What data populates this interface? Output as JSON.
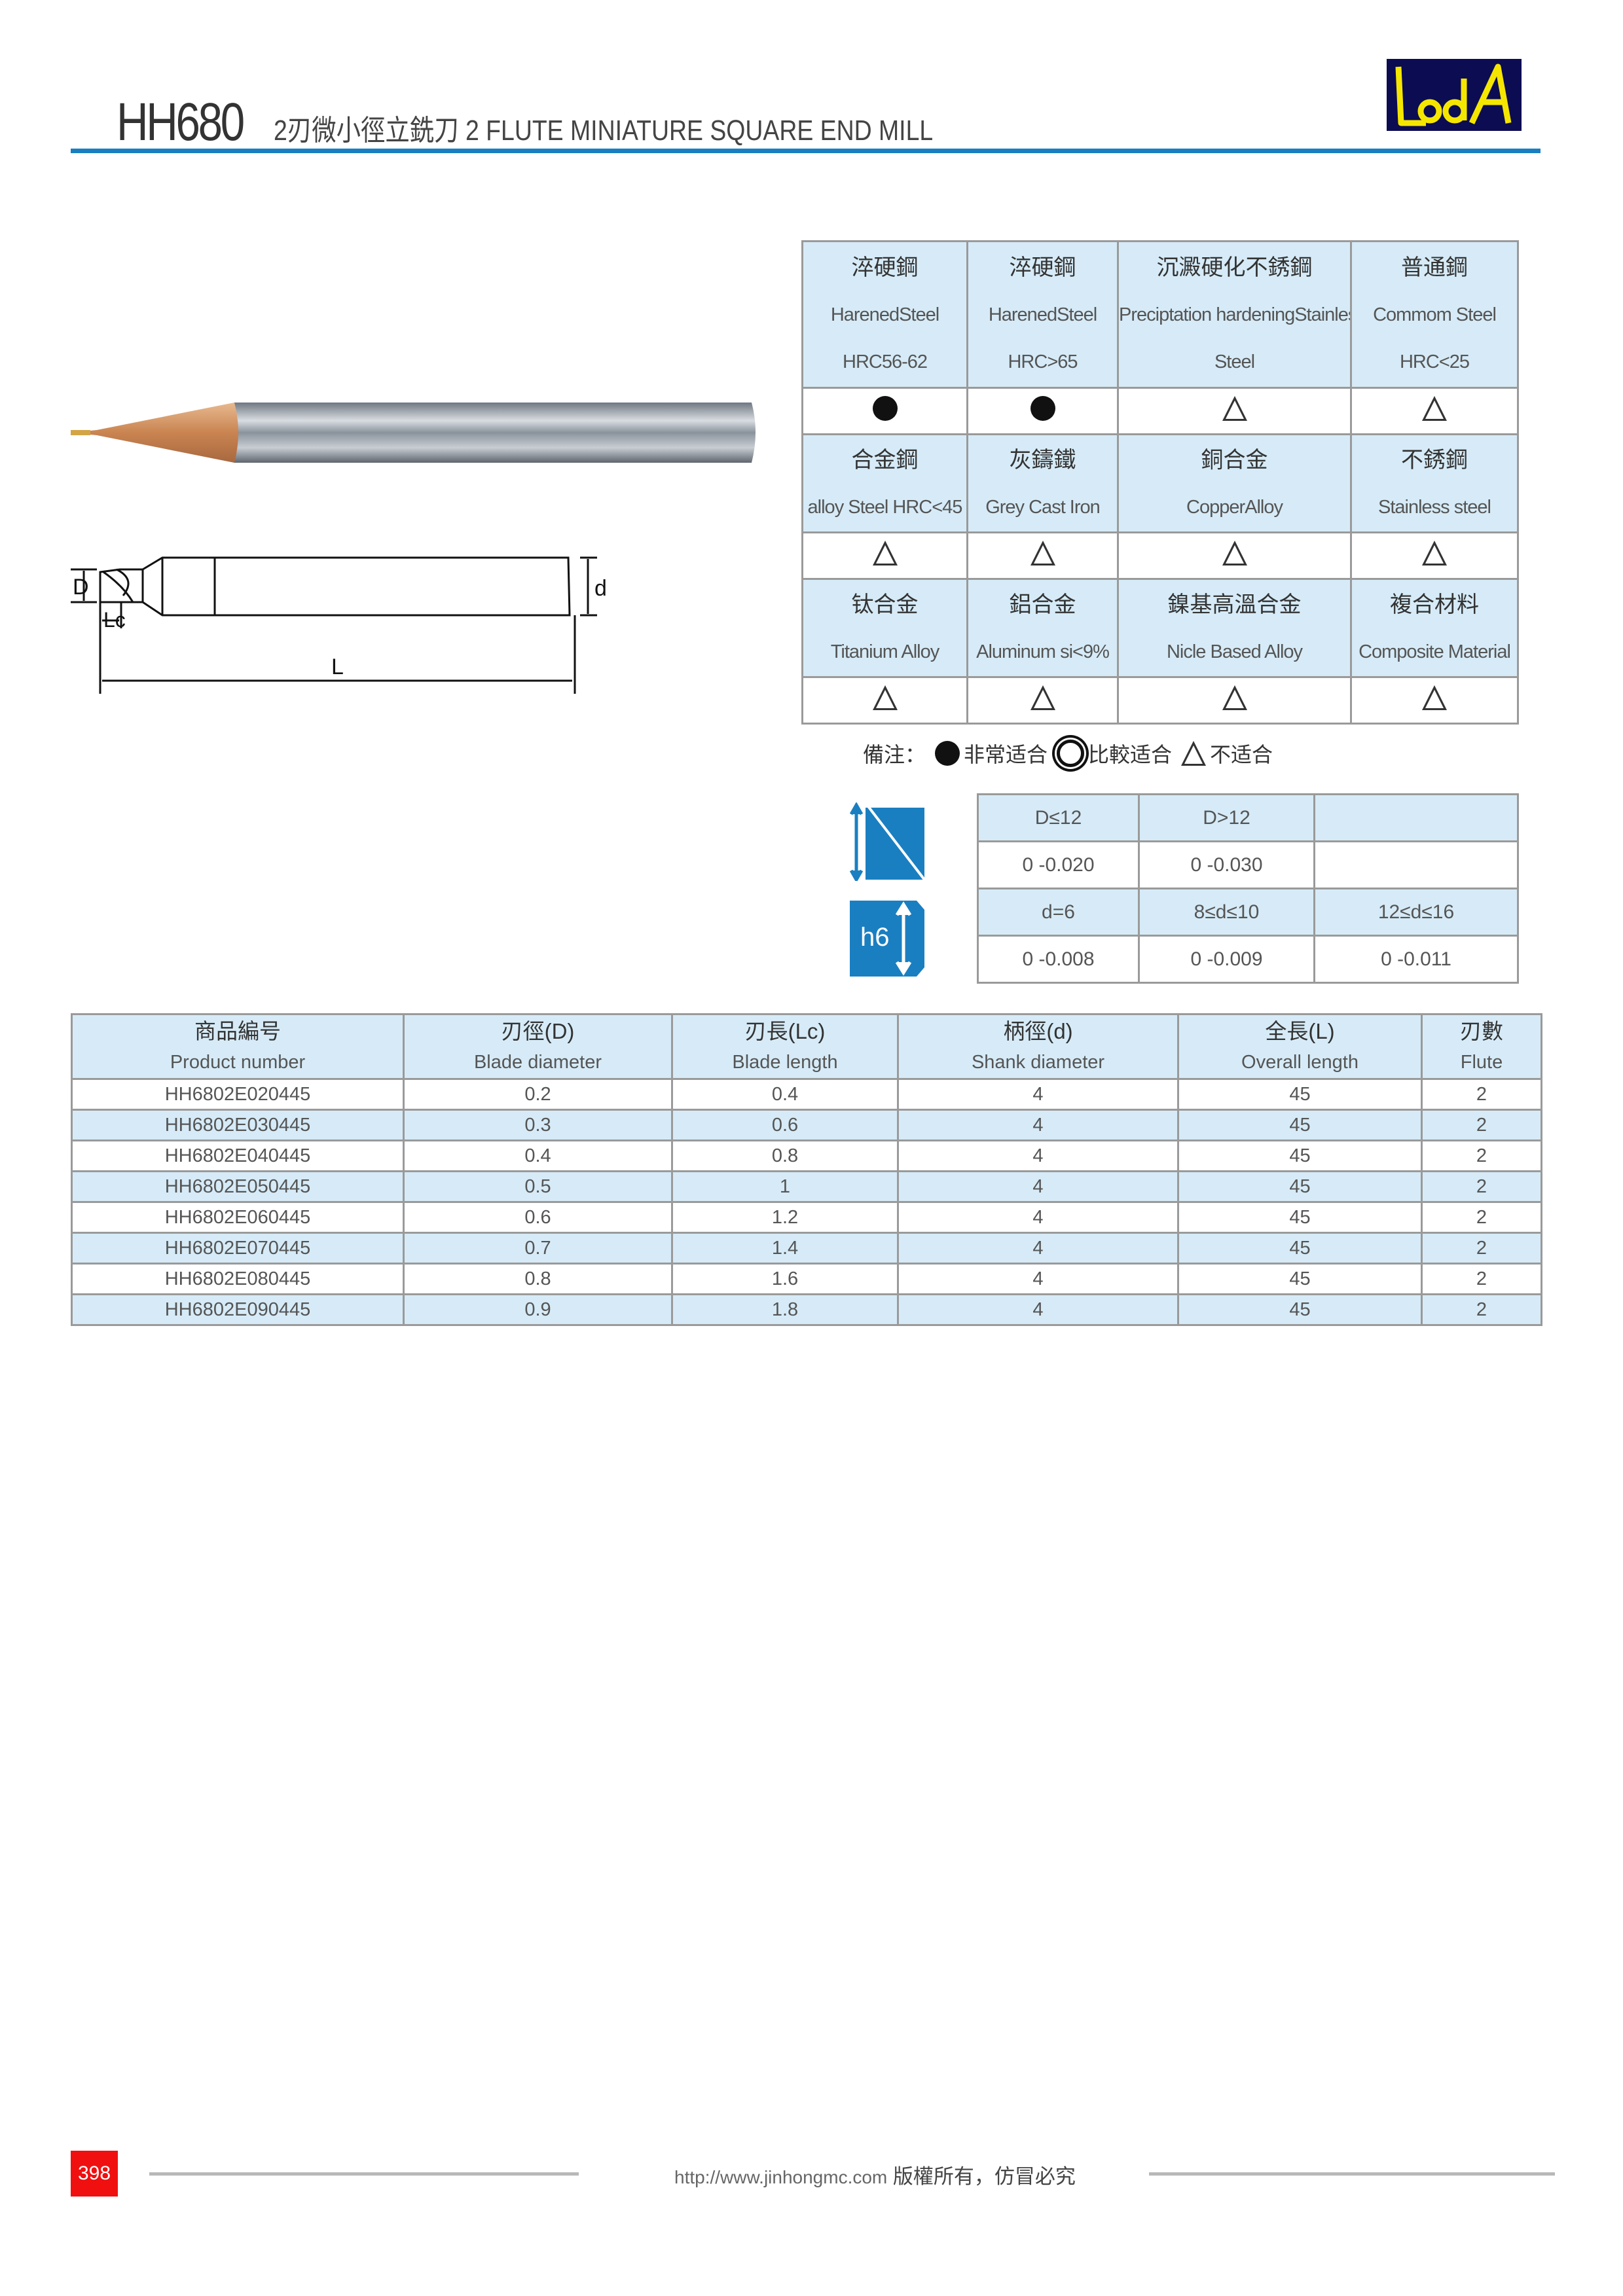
{
  "header": {
    "model": "HH680",
    "title": "2刃微小徑立銑刀 2 FLUTE MINIATURE SQUARE END MILL",
    "logo_text": "LaA"
  },
  "colors": {
    "accent": "#1a7fc1",
    "table_header": "#d6ebf7",
    "page_badge": "#f01010"
  },
  "diagram": {
    "labels": {
      "D": "D",
      "d": "d",
      "Lc": "Lc",
      "L": "L"
    }
  },
  "materials": [
    [
      {
        "zh": "淬硬鋼",
        "en1": "HarenedSteel",
        "en2": "HRC56-62",
        "symbol": "circle"
      },
      {
        "zh": "淬硬鋼",
        "en1": "HarenedSteel",
        "en2": "HRC>65",
        "symbol": "circle"
      },
      {
        "zh": "沉澱硬化不銹鋼",
        "en1": "Preciptation hardeningStainless",
        "en2": "Steel",
        "symbol": "triangle"
      },
      {
        "zh": "普通鋼",
        "en1": "Commom Steel",
        "en2": "HRC<25",
        "symbol": "triangle"
      }
    ],
    [
      {
        "zh": "合金鋼",
        "en1": "alloy Steel HRC<45",
        "symbol": "triangle"
      },
      {
        "zh": "灰鑄鐵",
        "en1": "Grey Cast Iron",
        "symbol": "triangle"
      },
      {
        "zh": "銅合金",
        "en1": "CopperAlloy",
        "symbol": "triangle"
      },
      {
        "zh": "不銹鋼",
        "en1": "Stainless steel",
        "symbol": "triangle"
      }
    ],
    [
      {
        "zh": "钛合金",
        "en1": "Titanium Alloy",
        "symbol": "triangle"
      },
      {
        "zh": "鋁合金",
        "en1": "Aluminum si<9%",
        "symbol": "triangle"
      },
      {
        "zh": "鎳基高溫合金",
        "en1": "Nicle Based Alloy",
        "symbol": "triangle"
      },
      {
        "zh": "複合材料",
        "en1": "Composite Material",
        "symbol": "triangle"
      }
    ]
  ],
  "legend": {
    "label": "備注：",
    "items": [
      {
        "symbol": "circle",
        "text": "非常适合"
      },
      {
        "symbol": "double-circle",
        "text": "比較适合"
      },
      {
        "symbol": "triangle",
        "text": "不适合"
      }
    ]
  },
  "tolerance": {
    "icon_h6": "h6",
    "rows": [
      [
        "D≤12",
        "D>12",
        ""
      ],
      [
        "0 -0.020",
        "0 -0.030",
        ""
      ],
      [
        "d=6",
        "8≤d≤10",
        "12≤d≤16"
      ],
      [
        "0 -0.008",
        "0 -0.009",
        "0 -0.011"
      ]
    ]
  },
  "products": {
    "columns": [
      {
        "zh": "商品編号",
        "en": "Product number"
      },
      {
        "zh": "刃徑(D)",
        "en": "Blade diameter"
      },
      {
        "zh": "刃長(Lc)",
        "en": "Blade length"
      },
      {
        "zh": "柄徑(d)",
        "en": "Shank diameter"
      },
      {
        "zh": "全長(L)",
        "en": "Overall length"
      },
      {
        "zh": "刃數",
        "en": "Flute"
      }
    ],
    "rows": [
      [
        "HH6802E020445",
        "0.2",
        "0.4",
        "4",
        "45",
        "2"
      ],
      [
        "HH6802E030445",
        "0.3",
        "0.6",
        "4",
        "45",
        "2"
      ],
      [
        "HH6802E040445",
        "0.4",
        "0.8",
        "4",
        "45",
        "2"
      ],
      [
        "HH6802E050445",
        "0.5",
        "1",
        "4",
        "45",
        "2"
      ],
      [
        "HH6802E060445",
        "0.6",
        "1.2",
        "4",
        "45",
        "2"
      ],
      [
        "HH6802E070445",
        "0.7",
        "1.4",
        "4",
        "45",
        "2"
      ],
      [
        "HH6802E080445",
        "0.8",
        "1.6",
        "4",
        "45",
        "2"
      ],
      [
        "HH6802E090445",
        "0.9",
        "1.8",
        "4",
        "45",
        "2"
      ]
    ]
  },
  "footer": {
    "page_number": "398",
    "url": "http://www.jinhongmc.com",
    "copyright": "版權所有，仿冒必究"
  }
}
